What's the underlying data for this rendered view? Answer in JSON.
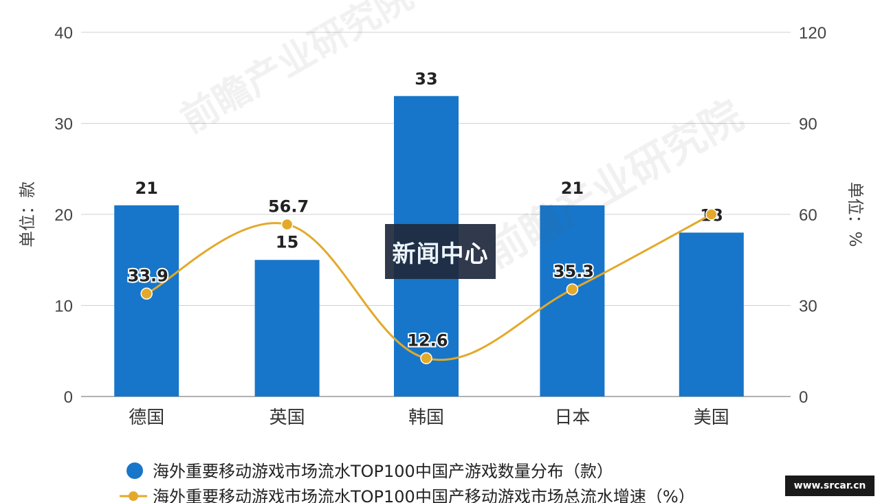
{
  "chart_data": {
    "type": "bar",
    "categories": [
      "德国",
      "英国",
      "韩国",
      "日本",
      "美国"
    ],
    "series": [
      {
        "name": "海外重要移动游戏市场流水TOP100中国产游戏数量分布（款）",
        "type": "bar",
        "axis": "left",
        "values": [
          21,
          15,
          33,
          21,
          18
        ],
        "color": "#1776c9"
      },
      {
        "name": "海外重要移动游戏市场流水TOP100中国产移动游戏市场总流水增速（%）",
        "type": "line",
        "axis": "right",
        "values": [
          33.9,
          56.7,
          12.6,
          35.3,
          60
        ],
        "labels": [
          "33.9",
          "56.7",
          "12.6",
          "35.3",
          ""
        ],
        "color": "#e3a92a"
      }
    ],
    "ylabel_left": "单位：款",
    "ylabel_right": "单位：%",
    "ylim_left": [
      0,
      40
    ],
    "ylim_right": [
      0,
      120
    ],
    "yticks_left": [
      0,
      10,
      20,
      30,
      40
    ],
    "yticks_right": [
      0,
      30,
      60,
      90,
      120
    ],
    "grid": true,
    "legend_placement": "bottom-left"
  },
  "overlay": {
    "badge_text": "新闻中心",
    "site_stamp": "www.srcar.cn",
    "watermark_text": "前瞻产业研究院"
  }
}
